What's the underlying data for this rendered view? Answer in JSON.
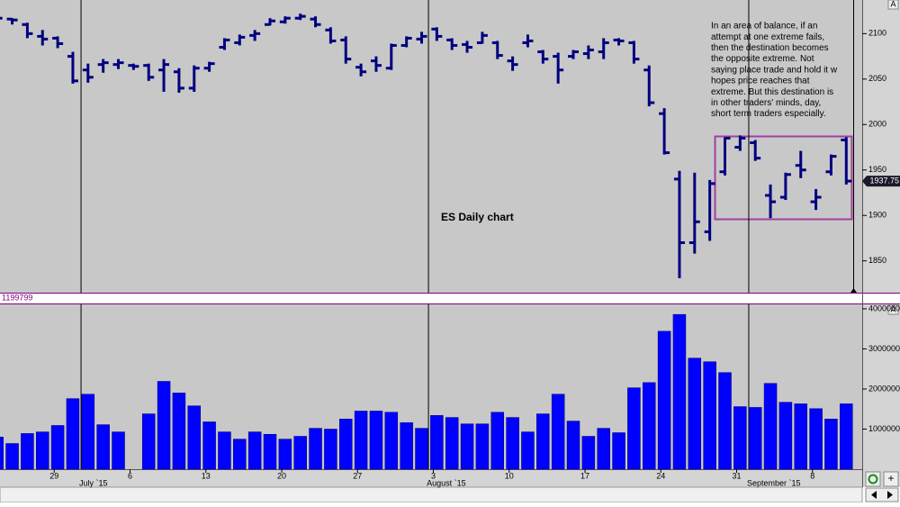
{
  "chart_data": [
    {
      "type": "ohlc",
      "title": "ES Daily chart",
      "color": "#00007f",
      "open": [
        2116,
        2116,
        2110,
        2097,
        2095,
        2075,
        2060,
        2066,
        2066,
        2065,
        2065,
        2060,
        2058,
        2040,
        2062,
        2085,
        2090,
        2098,
        2110,
        2113,
        2117,
        2116,
        2104,
        2093,
        2063,
        2070,
        2062,
        2087,
        2094,
        2105,
        2093,
        2088,
        2090,
        2090,
        2070,
        2090,
        2080,
        2075,
        2075,
        2078,
        2080,
        2093,
        2090,
        2060,
        2012,
        1940,
        1870,
        1882,
        1948,
        1975,
        1980,
        1922,
        1920,
        1955,
        1915,
        1948,
        1983
      ],
      "high": [
        2118,
        2117,
        2112,
        2104,
        2097,
        2080,
        2067,
        2072,
        2072,
        2067,
        2067,
        2072,
        2062,
        2065,
        2069,
        2095,
        2099,
        2104,
        2117,
        2119,
        2122,
        2119,
        2107,
        2097,
        2067,
        2075,
        2089,
        2097,
        2102,
        2107,
        2095,
        2092,
        2102,
        2092,
        2075,
        2099,
        2082,
        2079,
        2082,
        2087,
        2095,
        2095,
        2092,
        2065,
        2018,
        1949,
        1947,
        1939,
        1986,
        1988,
        1983,
        1934,
        1947,
        1971,
        1929,
        1967,
        1986
      ],
      "low": [
        2114,
        2110,
        2095,
        2087,
        2084,
        2045,
        2046,
        2057,
        2061,
        2060,
        2048,
        2036,
        2035,
        2036,
        2058,
        2082,
        2087,
        2092,
        2109,
        2111,
        2115,
        2107,
        2089,
        2067,
        2053,
        2058,
        2060,
        2085,
        2089,
        2092,
        2082,
        2079,
        2089,
        2072,
        2059,
        2085,
        2067,
        2045,
        2072,
        2072,
        2072,
        2087,
        2067,
        2020,
        1967,
        1831,
        1858,
        1872,
        1944,
        1971,
        1960,
        1897,
        1917,
        1941,
        1906,
        1944,
        1934
      ],
      "close": [
        2117,
        2115,
        2100,
        2094,
        2089,
        2048,
        2052,
        2068,
        2068,
        2064,
        2052,
        2066,
        2040,
        2062,
        2067,
        2093,
        2096,
        2100,
        2114,
        2117,
        2119,
        2110,
        2092,
        2072,
        2058,
        2065,
        2087,
        2095,
        2097,
        2097,
        2087,
        2085,
        2098,
        2076,
        2066,
        2092,
        2072,
        2060,
        2080,
        2082,
        2090,
        2092,
        2072,
        2024,
        1969,
        1870,
        1893,
        1935,
        1985,
        1985,
        1963,
        1915,
        1945,
        1950,
        1920,
        1965,
        1937.75
      ],
      "ylim": [
        1815,
        2137
      ],
      "yticks": [
        1850,
        1900,
        1950,
        2000,
        2050,
        2100
      ],
      "annotation": [
        "In an area of balance, if an",
        "attempt at one extreme fails,",
        "then the destination becomes",
        "the opposite extreme. Not",
        "saying place trade and hold it w",
        "hopes price reaches that",
        "extreme. But this destination is",
        "in other traders' minds, day,",
        "short term traders especially."
      ]
    },
    {
      "type": "bar",
      "color": "#0000ff",
      "readout": "1199799",
      "categories": [
        null,
        null,
        null,
        "29",
        null,
        null,
        null,
        null,
        "6",
        null,
        null,
        null,
        null,
        "13",
        null,
        null,
        null,
        null,
        "20",
        null,
        null,
        null,
        null,
        "27",
        null,
        null,
        null,
        null,
        "3",
        null,
        null,
        null,
        null,
        "10",
        null,
        null,
        null,
        null,
        "17",
        null,
        null,
        null,
        null,
        "24",
        null,
        null,
        null,
        null,
        "31",
        null,
        null,
        null,
        null,
        "8",
        null,
        null,
        null
      ],
      "values": [
        800000,
        640000,
        890000,
        930000,
        1090000,
        1760000,
        1870000,
        1110000,
        930000,
        null,
        1380000,
        2190000,
        1900000,
        1580000,
        1180000,
        930000,
        750000,
        930000,
        870000,
        750000,
        820000,
        1020000,
        1000000,
        1250000,
        1450000,
        1450000,
        1420000,
        1160000,
        1020000,
        1340000,
        1290000,
        1130000,
        1130000,
        1420000,
        1290000,
        930000,
        1380000,
        1870000,
        1200000,
        820000,
        1020000,
        910000,
        2030000,
        2160000,
        3440000,
        3860000,
        2770000,
        2680000,
        2410000,
        1560000,
        1540000,
        2140000,
        1670000,
        1630000,
        1510000,
        1250000,
        1630000
      ],
      "ylim": [
        0,
        4110000
      ],
      "yticks": [
        1000000,
        2000000,
        3000000,
        4000000
      ],
      "month_labels": [
        "July `15",
        "August `15",
        "September `15"
      ]
    }
  ],
  "ui": {
    "autoscale_price": "A",
    "autoscale_volume": "A",
    "zoom_in": "+"
  }
}
